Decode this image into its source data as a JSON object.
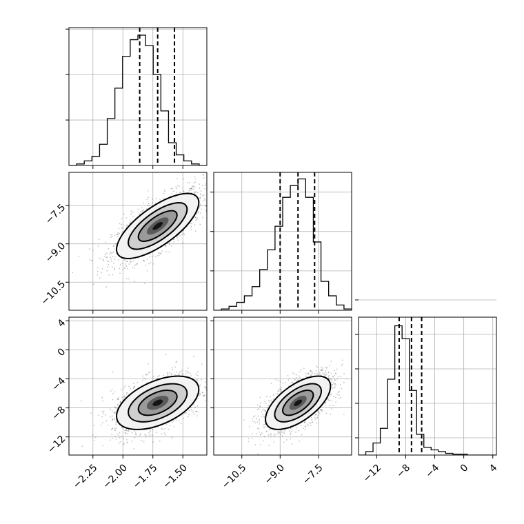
{
  "chart_data": {
    "type": "corner",
    "grid": true,
    "levels_fill": [
      "#f3f3f3",
      "#cfcfcf",
      "#9a9a9a",
      "#5a5a5a",
      "#141414"
    ],
    "parameters": [
      {
        "id": "p0",
        "range": [
          -2.45,
          -1.3
        ],
        "ticks": [
          -2.25,
          -2.0,
          -1.75,
          -1.5
        ],
        "tick_labels": [
          "−2.25",
          "−2.00",
          "−1.75",
          "−1.50"
        ],
        "quantiles": [
          -1.86,
          -1.71,
          -1.57
        ],
        "hist_counts": [
          0,
          1,
          3,
          6,
          14,
          31,
          51,
          72,
          83,
          86,
          79,
          60,
          36,
          15,
          7,
          3,
          1,
          0
        ],
        "hist_max": 91,
        "hist_grid": [
          30,
          60,
          90
        ]
      },
      {
        "id": "p1",
        "range": [
          -11.6,
          -6.2
        ],
        "ticks": [
          -10.5,
          -9.0,
          -7.5
        ],
        "tick_labels": [
          "−10.5",
          "−9.0",
          "−7.5"
        ],
        "quantiles": [
          -9.0,
          -8.3,
          -7.65
        ],
        "hist_counts": [
          0,
          1,
          3,
          6,
          11,
          18,
          31,
          46,
          64,
          86,
          95,
          100,
          86,
          52,
          22,
          11,
          4,
          1
        ],
        "hist_max": 105,
        "hist_grid": [
          30,
          60,
          90
        ]
      },
      {
        "id": "p2",
        "range": [
          -14.5,
          4.5
        ],
        "ticks": [
          -12,
          -8,
          -4,
          0,
          4
        ],
        "tick_labels": [
          "−12",
          "−8",
          "−4",
          "0",
          "4"
        ],
        "quantiles": [
          -8.9,
          -7.2,
          -5.8
        ],
        "hist_counts": [
          0,
          4,
          14,
          31,
          88,
          150,
          135,
          75,
          24,
          9,
          6,
          4,
          2,
          1,
          1,
          0,
          0,
          0,
          0
        ],
        "hist_max": 160,
        "hist_grid": [
          20,
          60,
          100,
          140,
          180
        ]
      }
    ],
    "pairs": [
      {
        "x": "p0",
        "y": "p1",
        "mean": [
          -1.71,
          -8.3
        ],
        "sd": [
          0.14,
          0.52
        ],
        "rho": 0.72,
        "scatter_n": 1600
      },
      {
        "x": "p0",
        "y": "p2",
        "mean": [
          -1.71,
          -7.3
        ],
        "sd": [
          0.14,
          1.5
        ],
        "rho": 0.5,
        "scatter_n": 1600
      },
      {
        "x": "p1",
        "y": "p2",
        "mean": [
          -8.3,
          -7.3
        ],
        "sd": [
          0.52,
          1.5
        ],
        "rho": 0.62,
        "scatter_n": 1600
      }
    ]
  }
}
